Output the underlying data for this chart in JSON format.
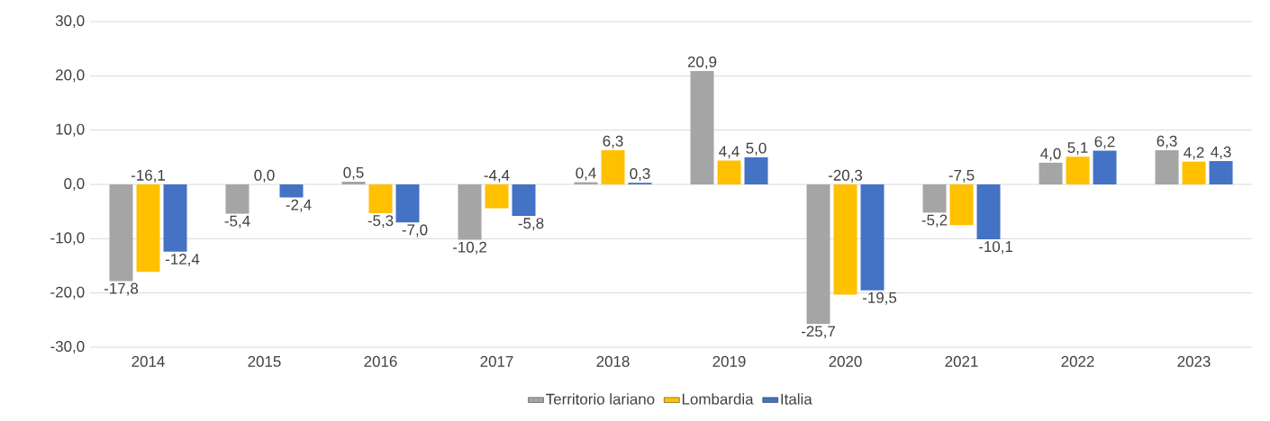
{
  "chart_data": {
    "type": "bar",
    "categories": [
      "2014",
      "2015",
      "2016",
      "2017",
      "2018",
      "2019",
      "2020",
      "2021",
      "2022",
      "2023"
    ],
    "series": [
      {
        "name": "Territorio lariano",
        "color": "#a5a5a5",
        "values": [
          -17.8,
          -5.4,
          0.5,
          -10.2,
          0.4,
          20.9,
          -25.7,
          -5.2,
          4.0,
          6.3
        ],
        "value_labels": [
          "-17,8",
          "-5,4",
          "0,5",
          "-10,2",
          "0,4",
          "20,9",
          "-25,7",
          "-5,2",
          "4,0",
          "6,3"
        ]
      },
      {
        "name": "Lombardia",
        "color": "#ffc000",
        "values": [
          -16.1,
          0.0,
          -5.3,
          -4.4,
          6.3,
          4.4,
          -20.3,
          -7.5,
          5.1,
          4.2
        ],
        "value_labels": [
          "-16,1",
          "0,0",
          "-5,3",
          "-4,4",
          "6,3",
          "4,4",
          "-20,3",
          "-7,5",
          "5,1",
          "4,2"
        ]
      },
      {
        "name": "Italia",
        "color": "#4472c4",
        "values": [
          -12.4,
          -2.4,
          -7.0,
          -5.8,
          0.3,
          5.0,
          -19.5,
          -10.1,
          6.2,
          4.3
        ],
        "value_labels": [
          "-12,4",
          "-2,4",
          "-7,0",
          "-5,8",
          "0,3",
          "5,0",
          "-19,5",
          "-10,1",
          "6,2",
          "4,3"
        ]
      }
    ],
    "ylim": [
      -30,
      30
    ],
    "yticks": [
      {
        "value": -30,
        "label": "-30,0"
      },
      {
        "value": -20,
        "label": "-20,0"
      },
      {
        "value": -10,
        "label": "-10,0"
      },
      {
        "value": 0,
        "label": "0,0"
      },
      {
        "value": 10,
        "label": "10,0"
      },
      {
        "value": 20,
        "label": "20,0"
      },
      {
        "value": 30,
        "label": "30,0"
      }
    ],
    "grid": "y",
    "legend": "bottom"
  }
}
